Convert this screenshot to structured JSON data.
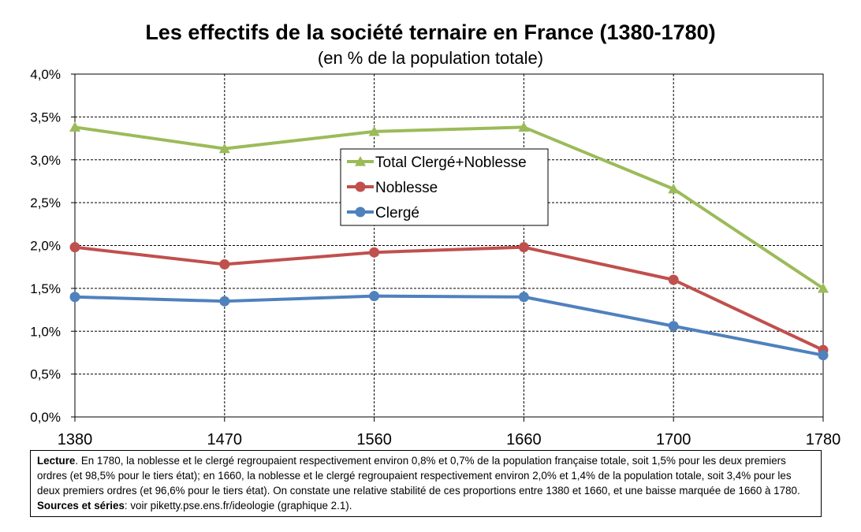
{
  "chart_data": {
    "type": "line",
    "title": "Les effectifs de la société ternaire en France (1380-1780)",
    "subtitle": "(en % de la population totale)",
    "categories": [
      "1380",
      "1470",
      "1560",
      "1660",
      "1700",
      "1780"
    ],
    "ylim": [
      0,
      4.0
    ],
    "yticks": [
      "0,0%",
      "0,5%",
      "1,0%",
      "1,5%",
      "2,0%",
      "2,5%",
      "3,0%",
      "3,5%",
      "4,0%"
    ],
    "grid": true,
    "legend_position": "center",
    "series": [
      {
        "name": "Total Clergé+Noblesse",
        "color": "#9BBB59",
        "marker": "triangle",
        "values": [
          3.38,
          3.13,
          3.33,
          3.38,
          2.66,
          1.5
        ]
      },
      {
        "name": "Noblesse",
        "color": "#C0504D",
        "marker": "circle",
        "values": [
          1.98,
          1.78,
          1.92,
          1.98,
          1.6,
          0.78
        ]
      },
      {
        "name": "Clergé",
        "color": "#4F81BD",
        "marker": "circle",
        "values": [
          1.4,
          1.35,
          1.41,
          1.4,
          1.06,
          0.72
        ]
      }
    ]
  },
  "note": {
    "lecture_label": "Lecture",
    "lecture_text": ". En 1780, la noblesse et le clergé regroupaient respectivement environ 0,8% et 0,7% de la population française totale, soit 1,5% pour les deux premiers ordres (et 98,5% pour le tiers état); en 1660, la noblesse et le clergé regroupaient respectivement environ 2,0% et 1,4% de la population totale, soit 3,4% pour les deux premiers ordres (et 96,6% pour le tiers état). On constate une relative stabilité de ces proportions entre 1380 et 1660, et une baisse marquée de 1660 à 1780. ",
    "sources_label": "Sources et séries",
    "sources_text": ": voir piketty.pse.ens.fr/ideologie (graphique 2.1)."
  }
}
